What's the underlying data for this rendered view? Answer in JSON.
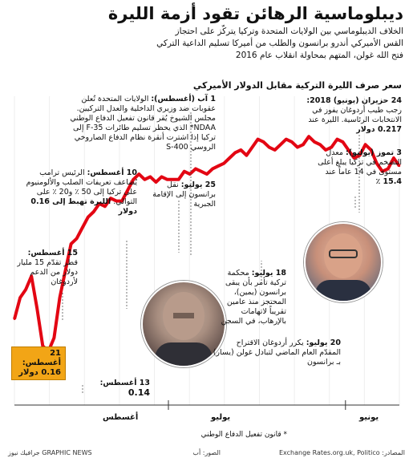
{
  "header": {
    "title": "ديبلوماسية الرهائن تقود أزمة الليرة",
    "subtitle_lines": [
      "الخلاف الديبلوماسي بين الولايات المتحدة وتركيا يتركّز على احتجاز",
      "القس الأميركي أندرو برانسون والطلب من أميركا تسليم الداعية التركي",
      "فتح الله غولن، المتهم بمحاولة انقلاب عام 2016"
    ]
  },
  "chart_data": {
    "type": "line",
    "title": "سعر صرف الليرة التركية مقابل الدولار الأميركي",
    "x_axis_labels": [
      "يونيو",
      "يوليو",
      "أغسطس"
    ],
    "x_axis_note": "* قانون تفعيل الدفاع الوطني",
    "y_min": 0.12,
    "y_max": 0.235,
    "series": [
      {
        "color": "#e30613",
        "values": [
          0.209,
          0.212,
          0.208,
          0.207,
          0.21,
          0.215,
          0.217,
          0.213,
          0.212,
          0.215,
          0.218,
          0.219,
          0.216,
          0.215,
          0.217,
          0.218,
          0.22,
          0.217,
          0.216,
          0.218,
          0.219,
          0.217,
          0.215,
          0.216,
          0.218,
          0.219,
          0.216,
          0.213,
          0.215,
          0.214,
          0.212,
          0.21,
          0.209,
          0.208,
          0.206,
          0.207,
          0.208,
          0.206,
          0.207,
          0.204,
          0.204,
          0.204,
          0.205,
          0.203,
          0.205,
          0.204,
          0.206,
          0.204,
          0.2,
          0.196,
          0.196,
          0.197,
          0.194,
          0.195,
          0.192,
          0.19,
          0.186,
          0.182,
          0.18,
          0.17,
          0.16,
          0.145,
          0.14,
          0.142,
          0.156,
          0.168,
          0.163,
          0.16,
          0.152
        ]
      }
    ]
  },
  "annotations": {
    "n1": {
      "date": "24 حزيران (يونيو) 2018:",
      "text": "رجب طيب أردوغان يفوز في الانتخابات الرئاسية. الليرة عند",
      "value": "0.217 دولار"
    },
    "n2": {
      "date": "3 تموز (يوليو):",
      "text": "معدل التضخم في تركيا يبلغ أعلى مستوى في 14 عاماً عند",
      "value": "15.4 ٪"
    },
    "n3": {
      "date": "1 آب (أغسطس):",
      "text": "الولايات المتحدة تُعلن عقوبات ضد وزيري الداخلية والعدل التركيين. مجلس الشيوخ يُقر قانون تفعيل الدفاع الوطني NDAA* الذي يحظر تسليم طائرات F-35 إلى تركيا إذا اشترت أنقرة نظام الدفاع الصاروخي الروسي S-400"
    },
    "n4": {
      "date": "10 أغسطس:",
      "text": "الرئيس ترامب يُضاعف تعريفات الصلب والألومنيوم على تركيا إلى 50 ٪ و20 ٪ على التوالي.",
      "value": "الليرة تهبط إلى 0.16 دولار"
    },
    "n5": {
      "date": "25 يوليو:",
      "text": "نقل برانسون إلى الإقامة الجبرية"
    },
    "n6": {
      "date": "18 يوليو:",
      "text": "محكمة تركية تأمر بأن يبقى برانسون (يمين)، المحتجز منذ عامين تقريباً لاتهامات بالإرهاب، في السجن"
    },
    "n7": {
      "date": "20 يوليو:",
      "text": "يكرر أردوغان الاقتراح المقدّم العام الماضي لتبادل غولن (يسار) بـ برانسون"
    },
    "n8": {
      "date": "15 أغسطس:",
      "text": "قطر تقدّم 15 مليار دولار من الدعم لأردوغان"
    },
    "n9": {
      "date": "13 أغسطس:",
      "value": "0.14"
    },
    "n10": {
      "date": "21 أغسطس:",
      "value": "0.16 دولار"
    }
  },
  "footer": {
    "sources": "المصادر: Exchange Rates.org.uk, Politico",
    "photos": "الصور: أب",
    "brand": "GRAPHIC NEWS جرافيك نيوز"
  }
}
